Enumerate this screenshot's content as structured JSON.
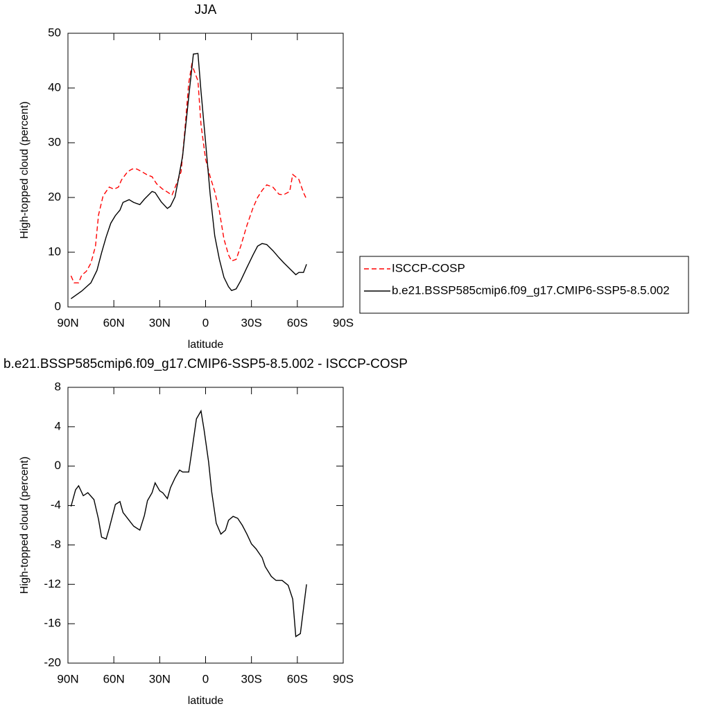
{
  "chart_data": [
    {
      "type": "line",
      "title": "JJA",
      "xlabel": "latitude",
      "ylabel": "High-topped cloud (percent)",
      "xlim": [
        90,
        -90
      ],
      "xticks": [
        {
          "value": 90,
          "label": "90N"
        },
        {
          "value": 60,
          "label": "60N"
        },
        {
          "value": 30,
          "label": "30N"
        },
        0,
        {
          "value": -30,
          "label": "30S"
        },
        {
          "value": -60,
          "label": "60S"
        },
        {
          "value": -90,
          "label": "90S"
        }
      ],
      "ylim": [
        0,
        50
      ],
      "yticks": [
        0,
        10,
        20,
        30,
        40,
        50
      ],
      "legend": "right",
      "series": [
        {
          "name": "ISCCP-COSP",
          "color": "#ff0000",
          "dash": true,
          "x": [
            88,
            86,
            83,
            81,
            78,
            75,
            72,
            70,
            67,
            63,
            60,
            57,
            55,
            51,
            48,
            45,
            41,
            38,
            35,
            32,
            28,
            25,
            22,
            20,
            16,
            14,
            11,
            9,
            5,
            3,
            0,
            -3,
            -6,
            -9,
            -12,
            -15,
            -17,
            -20,
            -23,
            -27,
            -31,
            -34,
            -37,
            -40,
            -44,
            -48,
            -51,
            -55,
            -57,
            -61,
            -64,
            -66
          ],
          "values": [
            5.7,
            4.4,
            4.4,
            5.8,
            6.5,
            8.0,
            11.1,
            16.8,
            20.3,
            21.9,
            21.5,
            21.9,
            23.2,
            24.7,
            25.2,
            25.2,
            24.6,
            24.1,
            23.8,
            22.5,
            21.5,
            21.0,
            20.4,
            21.8,
            24.7,
            30.8,
            40.9,
            44.3,
            41.3,
            33.3,
            27.0,
            23.8,
            21.1,
            17.5,
            12.4,
            9.5,
            8.4,
            8.7,
            11.1,
            14.9,
            18.1,
            20.0,
            21.3,
            22.3,
            21.9,
            20.6,
            20.5,
            21.1,
            24.2,
            23.3,
            20.9,
            19.7
          ]
        },
        {
          "name": "b.e21.BSSP585cmip6.f09_g17.CMIP6-SSP5-8.5.002",
          "color": "#000000",
          "dash": false,
          "x": [
            88,
            81,
            75,
            71,
            68,
            65,
            62,
            59,
            56,
            54,
            50,
            47,
            43,
            40,
            35,
            33,
            29,
            25,
            23,
            20,
            18,
            15,
            11,
            8,
            5,
            3,
            0,
            -3,
            -6,
            -9,
            -12,
            -15,
            -17,
            -20,
            -23,
            -27,
            -31,
            -34,
            -37,
            -40,
            -44,
            -48,
            -51,
            -55,
            -59,
            -61,
            -64,
            -66
          ],
          "values": [
            1.5,
            2.9,
            4.4,
            6.7,
            9.9,
            12.8,
            15.3,
            16.7,
            17.7,
            19.1,
            19.6,
            19.1,
            18.7,
            19.7,
            21.1,
            20.9,
            19.2,
            18.0,
            18.4,
            20.1,
            23.0,
            27.6,
            38.4,
            46.2,
            46.3,
            39.4,
            30.1,
            20.6,
            13.0,
            8.7,
            5.4,
            3.7,
            3.0,
            3.3,
            4.8,
            7.2,
            9.5,
            11.1,
            11.6,
            11.4,
            10.3,
            9.0,
            8.1,
            7.0,
            5.9,
            6.3,
            6.3,
            7.8
          ]
        }
      ]
    },
    {
      "type": "line",
      "title": "b.e21.BSSP585cmip6.f09_g17.CMIP6-SSP5-8.5.002 - ISCCP-COSP",
      "xlabel": "latitude",
      "ylabel": "High-topped cloud (percent)",
      "xlim": [
        90,
        -90
      ],
      "xticks": [
        {
          "value": 90,
          "label": "90N"
        },
        {
          "value": 60,
          "label": "60N"
        },
        {
          "value": 30,
          "label": "30N"
        },
        0,
        {
          "value": -30,
          "label": "30S"
        },
        {
          "value": -60,
          "label": "60S"
        },
        {
          "value": -90,
          "label": "90S"
        }
      ],
      "ylim": [
        -20,
        8
      ],
      "yticks": [
        -20,
        -16,
        -12,
        -8,
        -4,
        0,
        4,
        8
      ],
      "color": "#000000",
      "x": [
        88,
        85,
        83,
        80,
        77,
        73,
        70,
        68,
        65,
        63,
        59,
        56,
        54,
        50,
        47,
        43,
        40,
        38,
        35,
        33,
        30,
        28,
        25,
        23,
        20,
        17,
        15,
        11,
        9,
        6,
        3,
        1,
        -2,
        -4,
        -7,
        -10,
        -13,
        -15,
        -18,
        -21,
        -24,
        -27,
        -30,
        -33,
        -37,
        -39,
        -43,
        -46,
        -50,
        -54,
        -57,
        -59,
        -62,
        -66
      ],
      "values": [
        -4.1,
        -2.4,
        -2.0,
        -3.0,
        -2.7,
        -3.4,
        -5.4,
        -7.2,
        -7.4,
        -6.3,
        -3.9,
        -3.6,
        -4.7,
        -5.5,
        -6.1,
        -6.5,
        -5.0,
        -3.5,
        -2.7,
        -1.7,
        -2.5,
        -2.7,
        -3.3,
        -2.2,
        -1.2,
        -0.4,
        -0.6,
        -0.6,
        1.5,
        4.8,
        5.6,
        3.7,
        0.4,
        -2.6,
        -5.8,
        -6.9,
        -6.5,
        -5.5,
        -5.1,
        -5.3,
        -6.0,
        -6.9,
        -7.9,
        -8.4,
        -9.3,
        -10.2,
        -11.2,
        -11.6,
        -11.6,
        -12.1,
        -13.5,
        -17.3,
        -17.0,
        -12.0
      ]
    }
  ]
}
